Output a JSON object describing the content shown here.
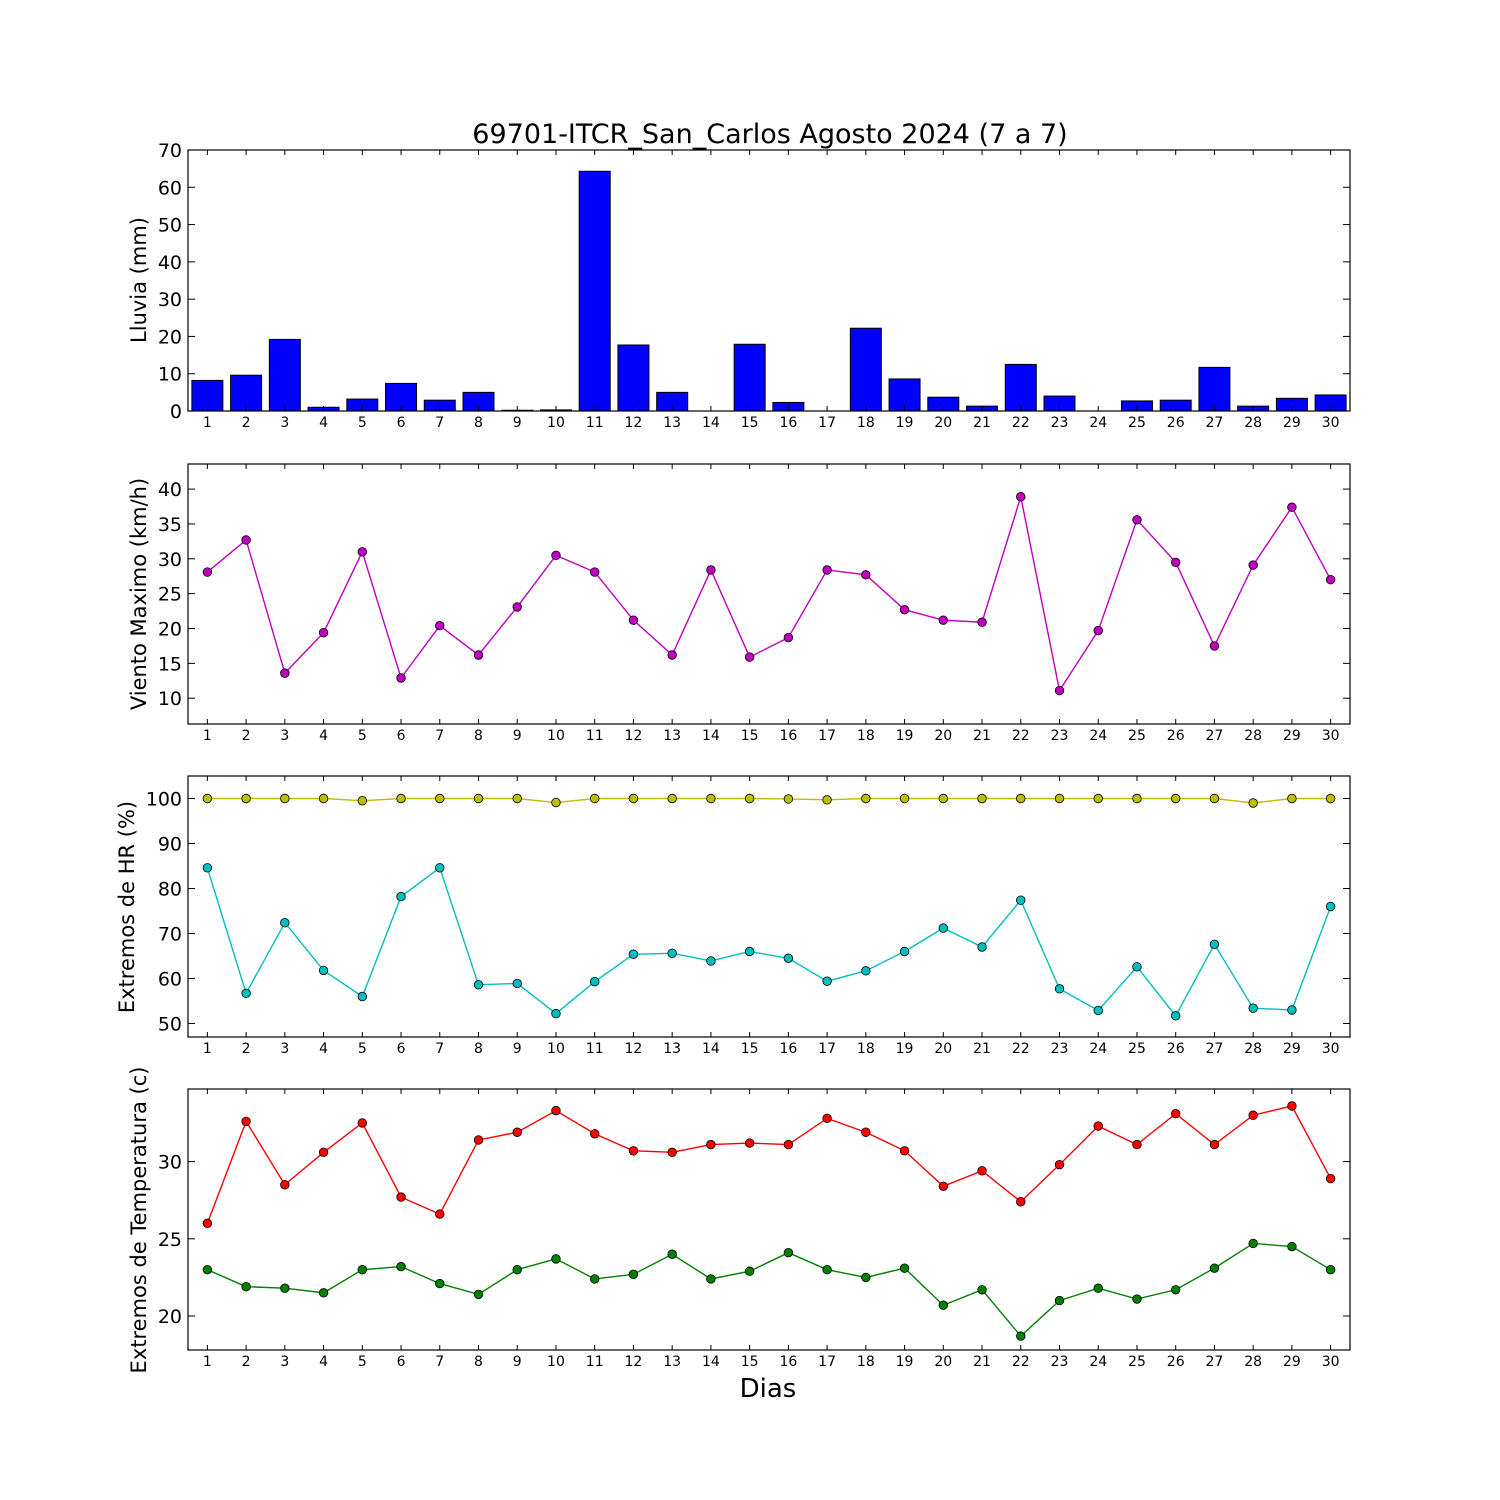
{
  "colors": {
    "bar": "#0000ff",
    "wind": "#bf00bf",
    "hr_max": "#bfbf00",
    "hr_min": "#00bfbf",
    "temp_max": "#ff0000",
    "temp_min": "#008000"
  },
  "chart_data": [
    {
      "type": "bar",
      "title": "69701-ITCR_San_Carlos Agosto 2024  (7 a 7)",
      "xlabel": "",
      "ylabel": "Lluvia (mm)",
      "categories": [
        "1",
        "2",
        "3",
        "4",
        "5",
        "6",
        "7",
        "8",
        "9",
        "10",
        "11",
        "12",
        "13",
        "14",
        "15",
        "16",
        "17",
        "18",
        "19",
        "20",
        "21",
        "22",
        "23",
        "24",
        "25",
        "26",
        "27",
        "28",
        "29",
        "30"
      ],
      "values": [
        8.2,
        9.6,
        19.2,
        1.0,
        3.2,
        7.4,
        2.9,
        5.0,
        0.2,
        0.3,
        64.3,
        17.7,
        5.0,
        0.0,
        17.9,
        2.3,
        0.0,
        22.2,
        8.6,
        3.7,
        1.3,
        12.5,
        4.0,
        0.0,
        2.7,
        2.9,
        11.7,
        1.3,
        3.4,
        4.3
      ],
      "ylim": [
        0,
        70
      ],
      "yticks": [
        "0",
        "10",
        "20",
        "30",
        "40",
        "50",
        "60",
        "70"
      ]
    },
    {
      "type": "line",
      "xlabel": "",
      "ylabel": "Viento Maximo (km/h)",
      "categories": [
        "1",
        "2",
        "3",
        "4",
        "5",
        "6",
        "7",
        "8",
        "9",
        "10",
        "11",
        "12",
        "13",
        "14",
        "15",
        "16",
        "17",
        "18",
        "19",
        "20",
        "21",
        "22",
        "23",
        "24",
        "25",
        "26",
        "27",
        "28",
        "29",
        "30"
      ],
      "series": [
        {
          "values": [
            28.1,
            32.7,
            13.6,
            19.4,
            31.0,
            12.9,
            20.4,
            16.2,
            23.1,
            30.5,
            28.1,
            21.2,
            16.2,
            28.4,
            15.9,
            18.7,
            28.4,
            27.7,
            22.7,
            21.2,
            20.9,
            38.9,
            11.1,
            19.7,
            35.6,
            29.5,
            17.5,
            29.1,
            37.4,
            27.0
          ]
        }
      ],
      "ylim": [
        6.3,
        43.6
      ],
      "yticks": [
        "10",
        "15",
        "20",
        "25",
        "30",
        "35",
        "40"
      ]
    },
    {
      "type": "line",
      "xlabel": "",
      "ylabel": "Extremos de HR (%)",
      "categories": [
        "1",
        "2",
        "3",
        "4",
        "5",
        "6",
        "7",
        "8",
        "9",
        "10",
        "11",
        "12",
        "13",
        "14",
        "15",
        "16",
        "17",
        "18",
        "19",
        "20",
        "21",
        "22",
        "23",
        "24",
        "25",
        "26",
        "27",
        "28",
        "29",
        "30"
      ],
      "series": [
        {
          "values": [
            100,
            100,
            100,
            100,
            99.5,
            100,
            100,
            100,
            100,
            99.1,
            100,
            100,
            100,
            100,
            100,
            99.9,
            99.7,
            100,
            100,
            100,
            100,
            100,
            100,
            100,
            100,
            100,
            100,
            99,
            100,
            100
          ]
        },
        {
          "values": [
            84.6,
            56.7,
            72.4,
            61.8,
            56.0,
            78.2,
            84.6,
            58.6,
            58.9,
            52.2,
            59.3,
            65.4,
            65.6,
            63.9,
            66.0,
            64.5,
            59.4,
            61.7,
            66.0,
            71.2,
            67.0,
            77.4,
            57.7,
            52.9,
            62.6,
            51.7,
            67.6,
            53.4,
            53.0,
            76.0
          ]
        }
      ],
      "ylim": [
        47,
        105
      ],
      "yticks": [
        "50",
        "60",
        "70",
        "80",
        "90",
        "100"
      ]
    },
    {
      "type": "line",
      "xlabel": "Dias",
      "ylabel": "Extremos de Temperatura (c)",
      "categories": [
        "1",
        "2",
        "3",
        "4",
        "5",
        "6",
        "7",
        "8",
        "9",
        "10",
        "11",
        "12",
        "13",
        "14",
        "15",
        "16",
        "17",
        "18",
        "19",
        "20",
        "21",
        "22",
        "23",
        "24",
        "25",
        "26",
        "27",
        "28",
        "29",
        "30"
      ],
      "series": [
        {
          "values": [
            26.0,
            32.6,
            28.5,
            30.6,
            32.5,
            27.7,
            26.6,
            31.4,
            31.9,
            33.3,
            31.8,
            30.7,
            30.6,
            31.1,
            31.2,
            31.1,
            32.8,
            31.9,
            30.7,
            28.4,
            29.4,
            27.4,
            29.8,
            32.3,
            31.1,
            33.1,
            31.1,
            33.0,
            33.6,
            28.9
          ]
        },
        {
          "values": [
            23.0,
            21.9,
            21.8,
            21.5,
            23.0,
            23.2,
            22.1,
            21.4,
            23.0,
            23.7,
            22.4,
            22.7,
            24.0,
            22.4,
            22.9,
            24.1,
            23.0,
            22.5,
            23.1,
            20.7,
            21.7,
            18.7,
            21.0,
            21.8,
            21.1,
            21.7,
            23.1,
            24.7,
            24.5,
            23.0
          ]
        }
      ],
      "ylim": [
        17.8,
        34.7
      ],
      "yticks": [
        "20",
        "25",
        "30"
      ]
    }
  ]
}
